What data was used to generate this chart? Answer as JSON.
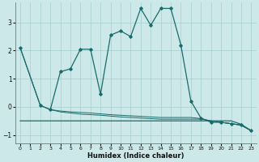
{
  "xlabel": "Humidex (Indice chaleur)",
  "bg_color": "#cce8e8",
  "grid_color": "#a8cece",
  "line_color": "#1a6b6b",
  "xlim": [
    -0.5,
    23.5
  ],
  "ylim": [
    -1.3,
    3.7
  ],
  "yticks": [
    -1,
    0,
    1,
    2,
    3
  ],
  "xticks": [
    0,
    1,
    2,
    3,
    4,
    5,
    6,
    7,
    8,
    9,
    10,
    11,
    12,
    13,
    14,
    15,
    16,
    17,
    18,
    19,
    20,
    21,
    22,
    23
  ],
  "main_x": [
    0,
    2,
    3,
    4,
    5,
    6,
    7,
    8,
    9,
    10,
    11,
    12,
    13,
    14,
    15,
    16,
    17,
    18,
    19,
    20,
    21,
    22,
    23
  ],
  "main_y": [
    2.1,
    0.05,
    -0.1,
    1.25,
    1.35,
    2.05,
    2.05,
    0.45,
    2.55,
    2.7,
    2.5,
    3.5,
    2.9,
    3.5,
    3.5,
    2.2,
    0.2,
    -0.4,
    -0.55,
    -0.55,
    -0.6,
    -0.65,
    -0.85
  ],
  "line2_x": [
    0,
    2,
    3,
    4,
    5,
    6,
    7,
    8,
    9,
    10,
    11,
    12,
    13,
    14,
    15,
    16,
    17,
    18,
    19,
    20,
    21,
    22,
    23
  ],
  "line2_y": [
    2.1,
    0.05,
    -0.1,
    -0.15,
    -0.18,
    -0.2,
    -0.22,
    -0.25,
    -0.28,
    -0.3,
    -0.32,
    -0.34,
    -0.36,
    -0.38,
    -0.38,
    -0.38,
    -0.38,
    -0.42,
    -0.5,
    -0.55,
    -0.6,
    -0.65,
    -0.85
  ],
  "flat_x": [
    0,
    1,
    2,
    3,
    4,
    5,
    6,
    7,
    8,
    9,
    10,
    11,
    12,
    13,
    14,
    15,
    16,
    17,
    18,
    19,
    20,
    21,
    22,
    23
  ],
  "flat_y": [
    -0.5,
    -0.5,
    -0.5,
    -0.5,
    -0.5,
    -0.5,
    -0.5,
    -0.5,
    -0.5,
    -0.5,
    -0.5,
    -0.5,
    -0.5,
    -0.5,
    -0.5,
    -0.5,
    -0.5,
    -0.5,
    -0.5,
    -0.5,
    -0.5,
    -0.5,
    -0.62,
    -0.85
  ],
  "line4_x": [
    3,
    4,
    5,
    6,
    7,
    8,
    9,
    10,
    11,
    12,
    13,
    14,
    15,
    16,
    17,
    18,
    19,
    20,
    21,
    22,
    23
  ],
  "line4_y": [
    -0.1,
    -0.18,
    -0.22,
    -0.26,
    -0.28,
    -0.3,
    -0.33,
    -0.36,
    -0.38,
    -0.4,
    -0.42,
    -0.44,
    -0.44,
    -0.44,
    -0.44,
    -0.44,
    -0.5,
    -0.55,
    -0.6,
    -0.65,
    -0.85
  ]
}
